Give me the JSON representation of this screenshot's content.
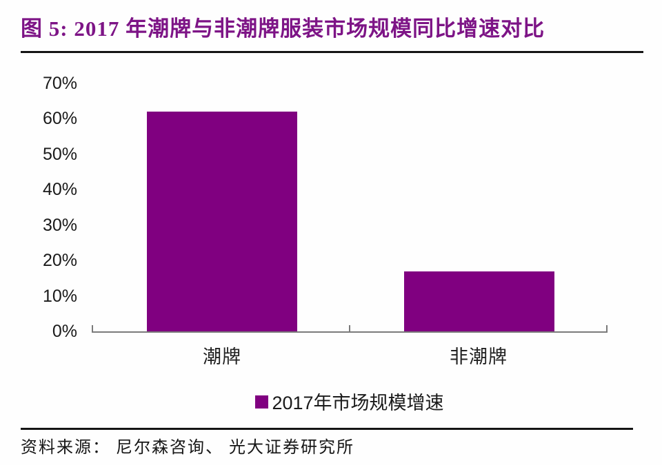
{
  "header": {
    "title": "图 5: 2017 年潮牌与非潮牌服装市场规模同比增速对比"
  },
  "chart_data": {
    "type": "bar",
    "title": "2017 年潮牌与非潮牌服装市场规模同比增速对比",
    "categories": [
      "潮牌",
      "非潮牌"
    ],
    "series": [
      {
        "name": "2017年市场规模增速",
        "values": [
          62,
          17
        ]
      }
    ],
    "values_unit": "%",
    "xlabel": "",
    "ylabel": "",
    "ylim": [
      0,
      70
    ],
    "ytick_labels": [
      "70%",
      "60%",
      "50%",
      "40%",
      "30%",
      "20%",
      "10%",
      "0%"
    ],
    "grid": false,
    "legend_position": "bottom",
    "legend_label": "2017年市场规模增速"
  },
  "footer": {
    "source": "资料来源： 尼尔森咨询、 光大证券研究所"
  },
  "colors": {
    "bar": "#800080",
    "title": "#7D1486",
    "axis_line": "#7a7a7a",
    "rule": "#141414"
  }
}
